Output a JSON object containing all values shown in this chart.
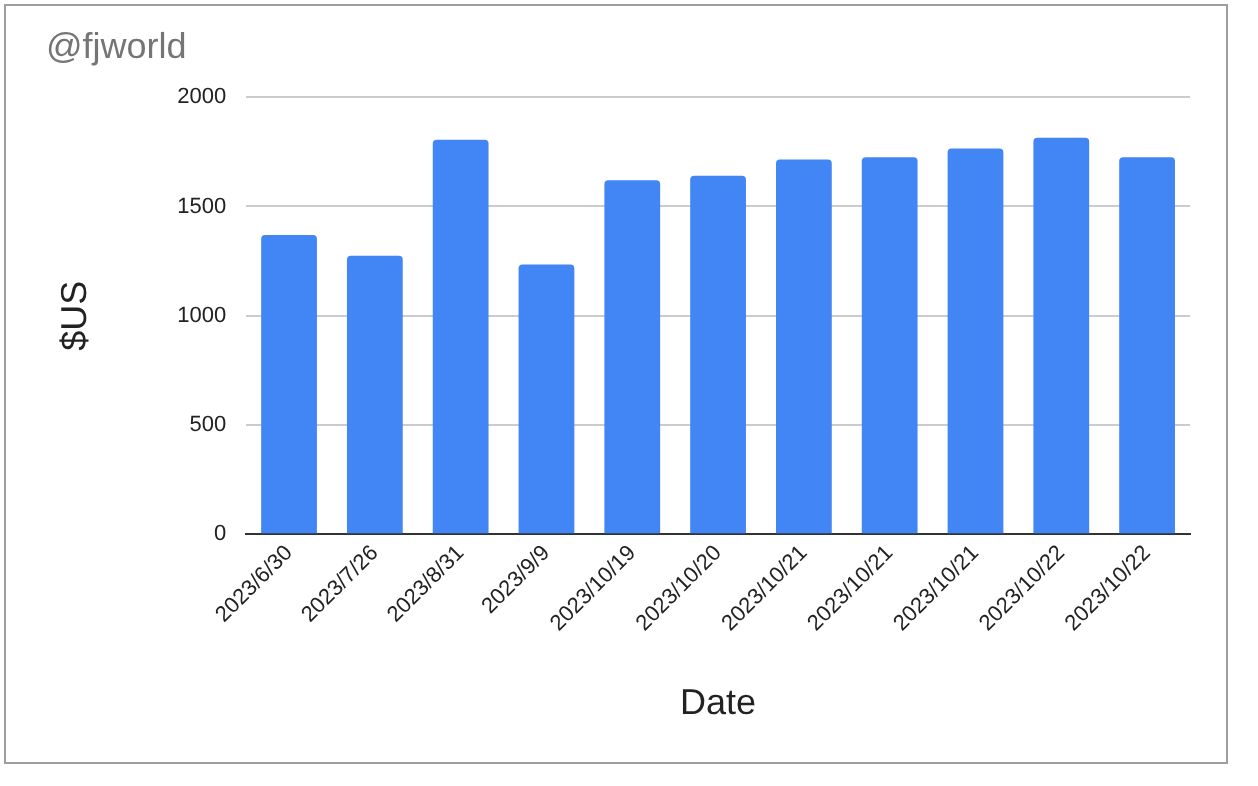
{
  "chart_data": {
    "type": "bar",
    "title": "@fjworld",
    "xlabel": "Date",
    "ylabel": "$US",
    "categories": [
      "2023/6/30",
      "2023/7/26",
      "2023/8/31",
      "2023/9/9",
      "2023/10/19",
      "2023/10/20",
      "2023/10/21",
      "2023/10/21",
      "2023/10/21",
      "2023/10/22",
      "2023/10/22"
    ],
    "values": [
      1370,
      1275,
      1805,
      1235,
      1620,
      1640,
      1715,
      1725,
      1765,
      1815,
      1725
    ],
    "color": "#4285f4",
    "ylim": [
      0,
      2000
    ],
    "yticks": [
      0,
      500,
      1000,
      1500,
      2000
    ],
    "grid": "y",
    "legend": false
  }
}
